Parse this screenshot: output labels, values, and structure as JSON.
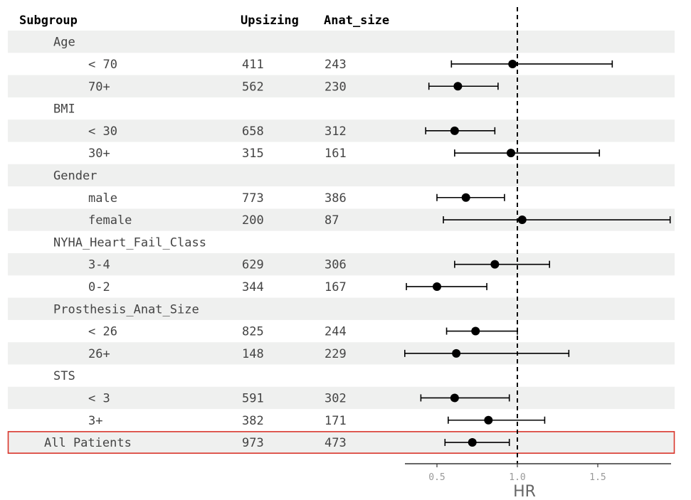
{
  "chart_data": {
    "type": "forest",
    "columns": [
      "Subgroup",
      "Upsizing",
      "Anat_size"
    ],
    "xlabel": "HR",
    "xlim": [
      0.5,
      1.95
    ],
    "xticks": [
      0.5,
      1.0,
      1.5
    ],
    "xtick_labels": [
      "0.5",
      "1.0",
      "1.5"
    ],
    "reference_line": 1.0,
    "rows": [
      {
        "label": "Age",
        "level": 1
      },
      {
        "label": "< 70",
        "level": 2,
        "upsizing": "411",
        "anat_size": "243",
        "hr": 0.97,
        "lower": 0.59,
        "upper": 1.59
      },
      {
        "label": "70+",
        "level": 2,
        "upsizing": "562",
        "anat_size": "230",
        "hr": 0.63,
        "lower": 0.45,
        "upper": 0.88
      },
      {
        "label": "BMI",
        "level": 1
      },
      {
        "label": "< 30",
        "level": 2,
        "upsizing": "658",
        "anat_size": "312",
        "hr": 0.61,
        "lower": 0.43,
        "upper": 0.86
      },
      {
        "label": "30+",
        "level": 2,
        "upsizing": "315",
        "anat_size": "161",
        "hr": 0.96,
        "lower": 0.61,
        "upper": 1.51
      },
      {
        "label": "Gender",
        "level": 1
      },
      {
        "label": "male",
        "level": 2,
        "upsizing": "773",
        "anat_size": "386",
        "hr": 0.68,
        "lower": 0.5,
        "upper": 0.92
      },
      {
        "label": "female",
        "level": 2,
        "upsizing": "200",
        "anat_size": "87",
        "hr": 1.03,
        "lower": 0.54,
        "upper": 1.95
      },
      {
        "label": "NYHA_Heart_Fail_Class",
        "level": 1
      },
      {
        "label": "3-4",
        "level": 2,
        "upsizing": "629",
        "anat_size": "306",
        "hr": 0.86,
        "lower": 0.61,
        "upper": 1.2
      },
      {
        "label": "0-2",
        "level": 2,
        "upsizing": "344",
        "anat_size": "167",
        "hr": 0.5,
        "lower": 0.31,
        "upper": 0.81
      },
      {
        "label": "Prosthesis_Anat_Size",
        "level": 1
      },
      {
        "label": "< 26",
        "level": 2,
        "upsizing": "825",
        "anat_size": "244",
        "hr": 0.74,
        "lower": 0.56,
        "upper": 1.0
      },
      {
        "label": "26+",
        "level": 2,
        "upsizing": "148",
        "anat_size": "229",
        "hr": 0.62,
        "lower": 0.3,
        "upper": 1.32
      },
      {
        "label": "STS",
        "level": 1
      },
      {
        "label": "< 3",
        "level": 2,
        "upsizing": "591",
        "anat_size": "302",
        "hr": 0.61,
        "lower": 0.4,
        "upper": 0.95
      },
      {
        "label": "3+",
        "level": 2,
        "upsizing": "382",
        "anat_size": "171",
        "hr": 0.82,
        "lower": 0.57,
        "upper": 1.17
      },
      {
        "label": "All Patients",
        "level": 0,
        "upsizing": "973",
        "anat_size": "473",
        "hr": 0.72,
        "lower": 0.55,
        "upper": 0.95,
        "highlight": true
      }
    ],
    "colors": {
      "band": "#eff0ef",
      "highlight_border": "#d9352b",
      "marker": "#000000",
      "text": "#444444",
      "header_text": "#000000",
      "tick_text": "#999999",
      "xlabel_text": "#666666"
    }
  }
}
